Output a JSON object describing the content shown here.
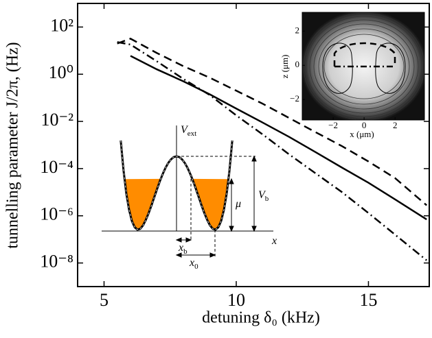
{
  "chart_data": {
    "type": "line",
    "xlabel": "detuning δ₀ (kHz)",
    "ylabel": "tunnelling parameter J/2π, (Hz)",
    "log_y": true,
    "x": [
      5.5,
      6,
      7,
      8,
      9,
      10,
      11,
      12,
      13,
      14,
      15,
      16,
      17.2
    ],
    "series": [
      {
        "color": "#000000",
        "linestyle": "solid",
        "values": [
          null,
          6.0,
          1.6,
          0.5,
          0.14,
          0.035,
          0.0089,
          0.0022,
          0.0005,
          0.00011,
          2.5e-05,
          5e-06,
          7e-07
        ]
      },
      {
        "color": "#000000",
        "linestyle": "dashed",
        "values": [
          20,
          32,
          7.9,
          2.2,
          0.71,
          0.2,
          0.056,
          0.014,
          0.0035,
          0.00089,
          0.0002,
          4e-05,
          2.8e-06
        ]
      },
      {
        "color": "#000000",
        "linestyle": "dashdot",
        "values": [
          23,
          18,
          3.5,
          0.63,
          0.13,
          0.018,
          0.0028,
          0.0004,
          6.3e-05,
          1e-05,
          1.3e-06,
          1.6e-07,
          1.3e-08
        ]
      }
    ],
    "xlim": [
      4,
      17.3
    ],
    "ylim": [
      1e-09,
      1000
    ],
    "xticks": [
      5,
      10,
      15
    ],
    "yticks": [
      {
        "value": 100,
        "label": "10²"
      },
      {
        "value": 1,
        "label": "10⁰"
      },
      {
        "value": 0.01,
        "label": "10⁻²"
      },
      {
        "value": 0.0001,
        "label": "10⁻⁴"
      },
      {
        "value": 1e-06,
        "label": "10⁻⁶"
      },
      {
        "value": 1e-08,
        "label": "10⁻⁸"
      }
    ],
    "density_inset": {
      "xlabel": "x (μm)",
      "ylabel": "z (μm)",
      "xlim": [
        -4,
        3.9
      ],
      "ylim": [
        -3.2,
        3.1
      ],
      "xticks": [
        {
          "value": -2,
          "label": "−2"
        },
        0,
        2
      ],
      "yticks": [
        {
          "value": -2,
          "label": "−2"
        },
        0,
        2
      ]
    },
    "potential_inset": {
      "potential": {
        "text": "V",
        "sub": "ext"
      },
      "barrier": {
        "text": "V",
        "sub": "b"
      },
      "chemical_potential": {
        "text": "μ"
      },
      "barrier_half_width": {
        "text": "x",
        "sub": "b"
      },
      "well_position": {
        "text": "x",
        "sub": "0"
      },
      "axis": {
        "text": "x"
      }
    }
  }
}
